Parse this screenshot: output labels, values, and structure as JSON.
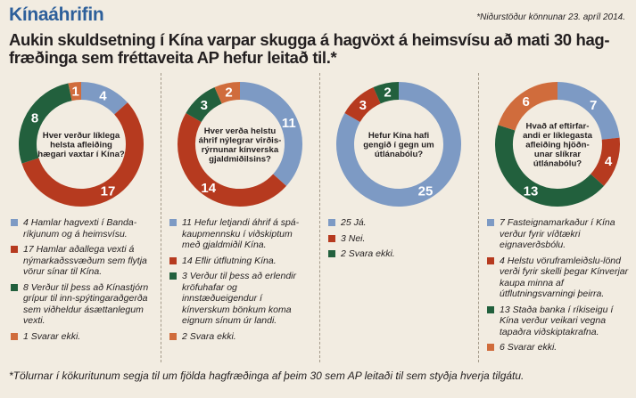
{
  "kicker": "Kínaáhrifin",
  "source": "*Niðurstöður könnunar 23. apríl 2014.",
  "headline": "Aukin skuldsetning í Kína varpar skugga á hagvöxt á heimsvísu að mati 30 hag-fræðinga sem fréttaveita AP hefur leitað til.*",
  "footnote": "*Tölurnar í kökuritunum segja til um fjölda hagfræðinga af þeim 30 sem AP leitaði til sem styðja hverja tilgátu.",
  "colors": {
    "blue": "#7d9ac4",
    "red": "#b63a1f",
    "green": "#22603d",
    "orange": "#d06c3c"
  },
  "chart_data": [
    {
      "type": "pie",
      "title": "Hver verður líklega helsta afleiðing hægari vaxtar í Kína?",
      "title_lines": [
        "Hver verður líklega",
        "helsta afleiðing",
        "hægari vaxtar í Kína?"
      ],
      "slices": [
        {
          "value": 4,
          "color": "#7d9ac4",
          "legend": "4 Hamlar hagvexti í Banda-ríkjunum og á heimsvísu."
        },
        {
          "value": 17,
          "color": "#b63a1f",
          "legend": "17 Hamlar aðallega vexti á nýmarkaðssvæðum sem flytja vörur sínar til Kína."
        },
        {
          "value": 8,
          "color": "#22603d",
          "legend": "8 Verður til þess að Kínastjórn grípur til inn-spýtingaraðgerða sem viðheldur ásættanlegum vexti."
        },
        {
          "value": 1,
          "color": "#d06c3c",
          "legend": "1 Svarar ekki."
        }
      ]
    },
    {
      "type": "pie",
      "title": "Hver verða helstu áhrif nýlegrar virðis-rýrnunar kínverska gjaldmiðilsins?",
      "title_lines": [
        "Hver verða helstu",
        "áhrif nýlegrar virðis-",
        "rýrnunar kínverska",
        "gjaldmiðilsins?"
      ],
      "slices": [
        {
          "value": 11,
          "color": "#7d9ac4",
          "legend": "11 Hefur letjandi áhrif á spá-kaupmennsku í viðskiptum með gjaldmiðil Kína."
        },
        {
          "value": 14,
          "color": "#b63a1f",
          "legend": "14 Eflir útflutning Kína."
        },
        {
          "value": 3,
          "color": "#22603d",
          "legend": "3 Verður til þess að erlendir kröfuhafar og innstæðueigendur í kínverskum bönkum koma eignum sínum úr landi."
        },
        {
          "value": 2,
          "color": "#d06c3c",
          "legend": "2 Svara ekki."
        }
      ]
    },
    {
      "type": "pie",
      "title": "Hefur Kína hafi gengið í gegn um útlánabólu?",
      "title_lines": [
        "Hefur Kína hafi",
        "gengið í gegn um",
        "útlánabólu?"
      ],
      "slices": [
        {
          "value": 25,
          "color": "#7d9ac4",
          "legend": "25 Já."
        },
        {
          "value": 3,
          "color": "#b63a1f",
          "legend": "3 Nei."
        },
        {
          "value": 2,
          "color": "#22603d",
          "legend": "2 Svara ekki."
        }
      ]
    },
    {
      "type": "pie",
      "title": "Hvað af eftirfar-andi er líklegasta afleiðing hjöðn-unar slíkrar útlánabólu?",
      "title_lines": [
        "Hvað af eftirfar-",
        "andi er líklegasta",
        "afleiðing hjöðn-",
        "unar slíkrar",
        "útlánabólu?"
      ],
      "slices": [
        {
          "value": 7,
          "color": "#7d9ac4",
          "legend": "7 Fasteignamarkaður í Kína verður fyrir víðtækri eignaverðsbólu."
        },
        {
          "value": 4,
          "color": "#b63a1f",
          "legend": "4 Helstu vöruframleiðslu-lönd verði fyrir skelli þegar Kínverjar kaupa minna af útflutningsvarningi þeirra."
        },
        {
          "value": 13,
          "color": "#22603d",
          "legend": "13 Staða banka í ríkiseigu í Kína verður veikari vegna tapaðra viðskiptakrafna."
        },
        {
          "value": 6,
          "color": "#d06c3c",
          "legend": "6 Svarar ekki."
        }
      ]
    }
  ]
}
